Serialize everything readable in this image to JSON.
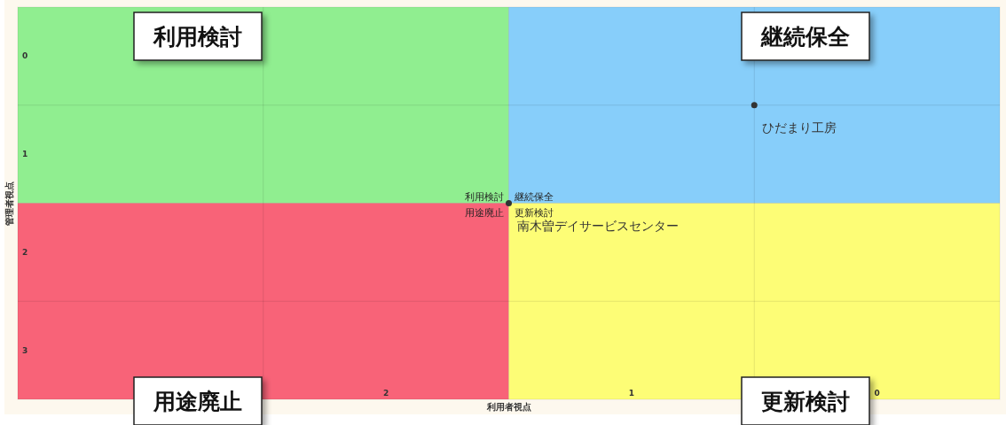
{
  "chart_data": {
    "type": "scatter",
    "xlabel": "利用者視点",
    "ylabel": "管理者視点",
    "xlim": [
      3.5,
      -0.5
    ],
    "ylim": [
      3.5,
      -0.5
    ],
    "xticks": [
      {
        "value": 2.5,
        "label": null
      },
      {
        "value": 1.5,
        "label": null
      },
      {
        "value": 0.5,
        "label": null
      },
      2,
      1,
      0
    ],
    "yticks": [
      {
        "value": 0.5,
        "label": null
      },
      {
        "value": 1.5,
        "label": null
      },
      {
        "value": 2.5,
        "label": null
      },
      0,
      1,
      2,
      3
    ],
    "grid": true,
    "marker": "circle",
    "x": [
      0.5,
      1.5
    ],
    "values": [
      0.5,
      1.5
    ],
    "value_labels": [
      "ひだまり工房",
      "南木曽デイサービスセンター"
    ],
    "annotations": [
      "利用検討",
      "継続保全",
      "用途廃止",
      "更新検討",
      "利用検討",
      "継続保全",
      "用途廃止",
      "更新検討"
    ]
  }
}
